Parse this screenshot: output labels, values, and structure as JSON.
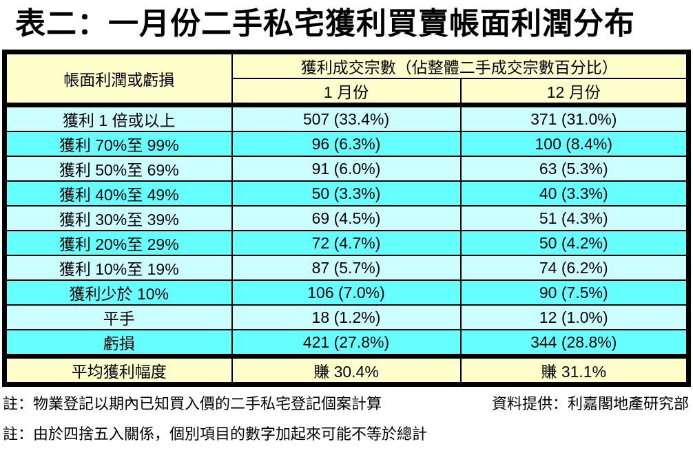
{
  "title": "表二：一月份二手私宅獲利買賣帳面利潤分布",
  "table": {
    "header": {
      "row_label_header": "帳面利潤或虧損",
      "group_header": "獲利成交宗數（佔整體二手成交宗數百分比）",
      "col_jan": "1 月份",
      "col_dec": "12 月份"
    },
    "rows": [
      {
        "label": "獲利 1 倍或以上",
        "jan": "507 (33.4%)",
        "dec": "371 (31.0%)"
      },
      {
        "label": "獲利 70%至 99%",
        "jan": "96 (6.3%)",
        "dec": "100 (8.4%)"
      },
      {
        "label": "獲利 50%至 69%",
        "jan": "91 (6.0%)",
        "dec": "63 (5.3%)"
      },
      {
        "label": "獲利 40%至 49%",
        "jan": "50 (3.3%)",
        "dec": "40 (3.3%)"
      },
      {
        "label": "獲利 30%至 39%",
        "jan": "69 (4.5%)",
        "dec": "51 (4.3%)"
      },
      {
        "label": "獲利 20%至 29%",
        "jan": "72 (4.7%)",
        "dec": "50 (4.2%)"
      },
      {
        "label": "獲利 10%至 19%",
        "jan": "87 (5.7%)",
        "dec": "74 (6.2%)"
      },
      {
        "label": "獲利少於 10%",
        "jan": "106 (7.0%)",
        "dec": "90 (7.5%)"
      },
      {
        "label": "平手",
        "jan": "18 (1.2%)",
        "dec": "12 (1.0%)"
      },
      {
        "label": "虧損",
        "jan": "421 (27.8%)",
        "dec": "344 (28.8%)"
      }
    ],
    "summary_row": {
      "label": "平均獲利幅度",
      "jan": "賺 30.4%",
      "dec": "賺 31.1%"
    }
  },
  "notes": {
    "note1": "註：物業登記以期內已知買入價的二手私宅登記個案計算",
    "source": "資料提供：利嘉閣地產研究部",
    "note2": "註：由於四捨五入關係，個別項目的數字加起來可能不等於總計"
  },
  "colors": {
    "header_bg": "#FFFFCC",
    "row_light": "#CCFFFF",
    "row_dark": "#66FFFF",
    "summary_bg": "#FFFFCC",
    "border": "#000000",
    "page_bg": "#FFFFFF",
    "text": "#000000"
  },
  "chart_data": {
    "type": "table",
    "title": "表二：一月份二手私宅獲利買賣帳面利潤分布",
    "group_header": "獲利成交宗數（佔整體二手成交宗數百分比）",
    "columns": [
      "帳面利潤或虧損",
      "1 月份",
      "12 月份"
    ],
    "categories": [
      "獲利 1 倍或以上",
      "獲利 70%至 99%",
      "獲利 50%至 69%",
      "獲利 40%至 49%",
      "獲利 30%至 39%",
      "獲利 20%至 29%",
      "獲利 10%至 19%",
      "獲利少於 10%",
      "平手",
      "虧損"
    ],
    "series": [
      {
        "name": "1 月份",
        "counts": [
          507,
          96,
          91,
          50,
          69,
          72,
          87,
          106,
          18,
          421
        ],
        "percentages": [
          33.4,
          6.3,
          6.0,
          3.3,
          4.5,
          4.7,
          5.7,
          7.0,
          1.2,
          27.8
        ],
        "average_profit_label": "平均獲利幅度",
        "average_profit": "賺 30.4%"
      },
      {
        "name": "12 月份",
        "counts": [
          371,
          100,
          63,
          40,
          51,
          50,
          74,
          90,
          12,
          344
        ],
        "percentages": [
          31.0,
          8.4,
          5.3,
          3.3,
          4.3,
          4.2,
          6.2,
          7.5,
          1.0,
          28.8
        ],
        "average_profit_label": "平均獲利幅度",
        "average_profit": "賺 31.1%"
      }
    ],
    "rows": [
      [
        "獲利 1 倍或以上",
        "507 (33.4%)",
        "371 (31.0%)"
      ],
      [
        "獲利 70%至 99%",
        "96 (6.3%)",
        "100 (8.4%)"
      ],
      [
        "獲利 50%至 69%",
        "91 (6.0%)",
        "63 (5.3%)"
      ],
      [
        "獲利 40%至 49%",
        "50 (3.3%)",
        "40 (3.3%)"
      ],
      [
        "獲利 30%至 39%",
        "69 (4.5%)",
        "51 (4.3%)"
      ],
      [
        "獲利 20%至 29%",
        "72 (4.7%)",
        "50 (4.2%)"
      ],
      [
        "獲利 10%至 19%",
        "87 (5.7%)",
        "74 (6.2%)"
      ],
      [
        "獲利少於 10%",
        "106 (7.0%)",
        "90 (7.5%)"
      ],
      [
        "平手",
        "18 (1.2%)",
        "12 (1.0%)"
      ],
      [
        "虧損",
        "421 (27.8%)",
        "344 (28.8%)"
      ],
      [
        "平均獲利幅度",
        "賺 30.4%",
        "賺 31.1%"
      ]
    ],
    "notes": [
      "註：物業登記以期內已知買入價的二手私宅登記個案計算",
      "資料提供：利嘉閣地產研究部",
      "註：由於四捨五入關係，個別項目的數字加起來可能不等於總計"
    ]
  }
}
